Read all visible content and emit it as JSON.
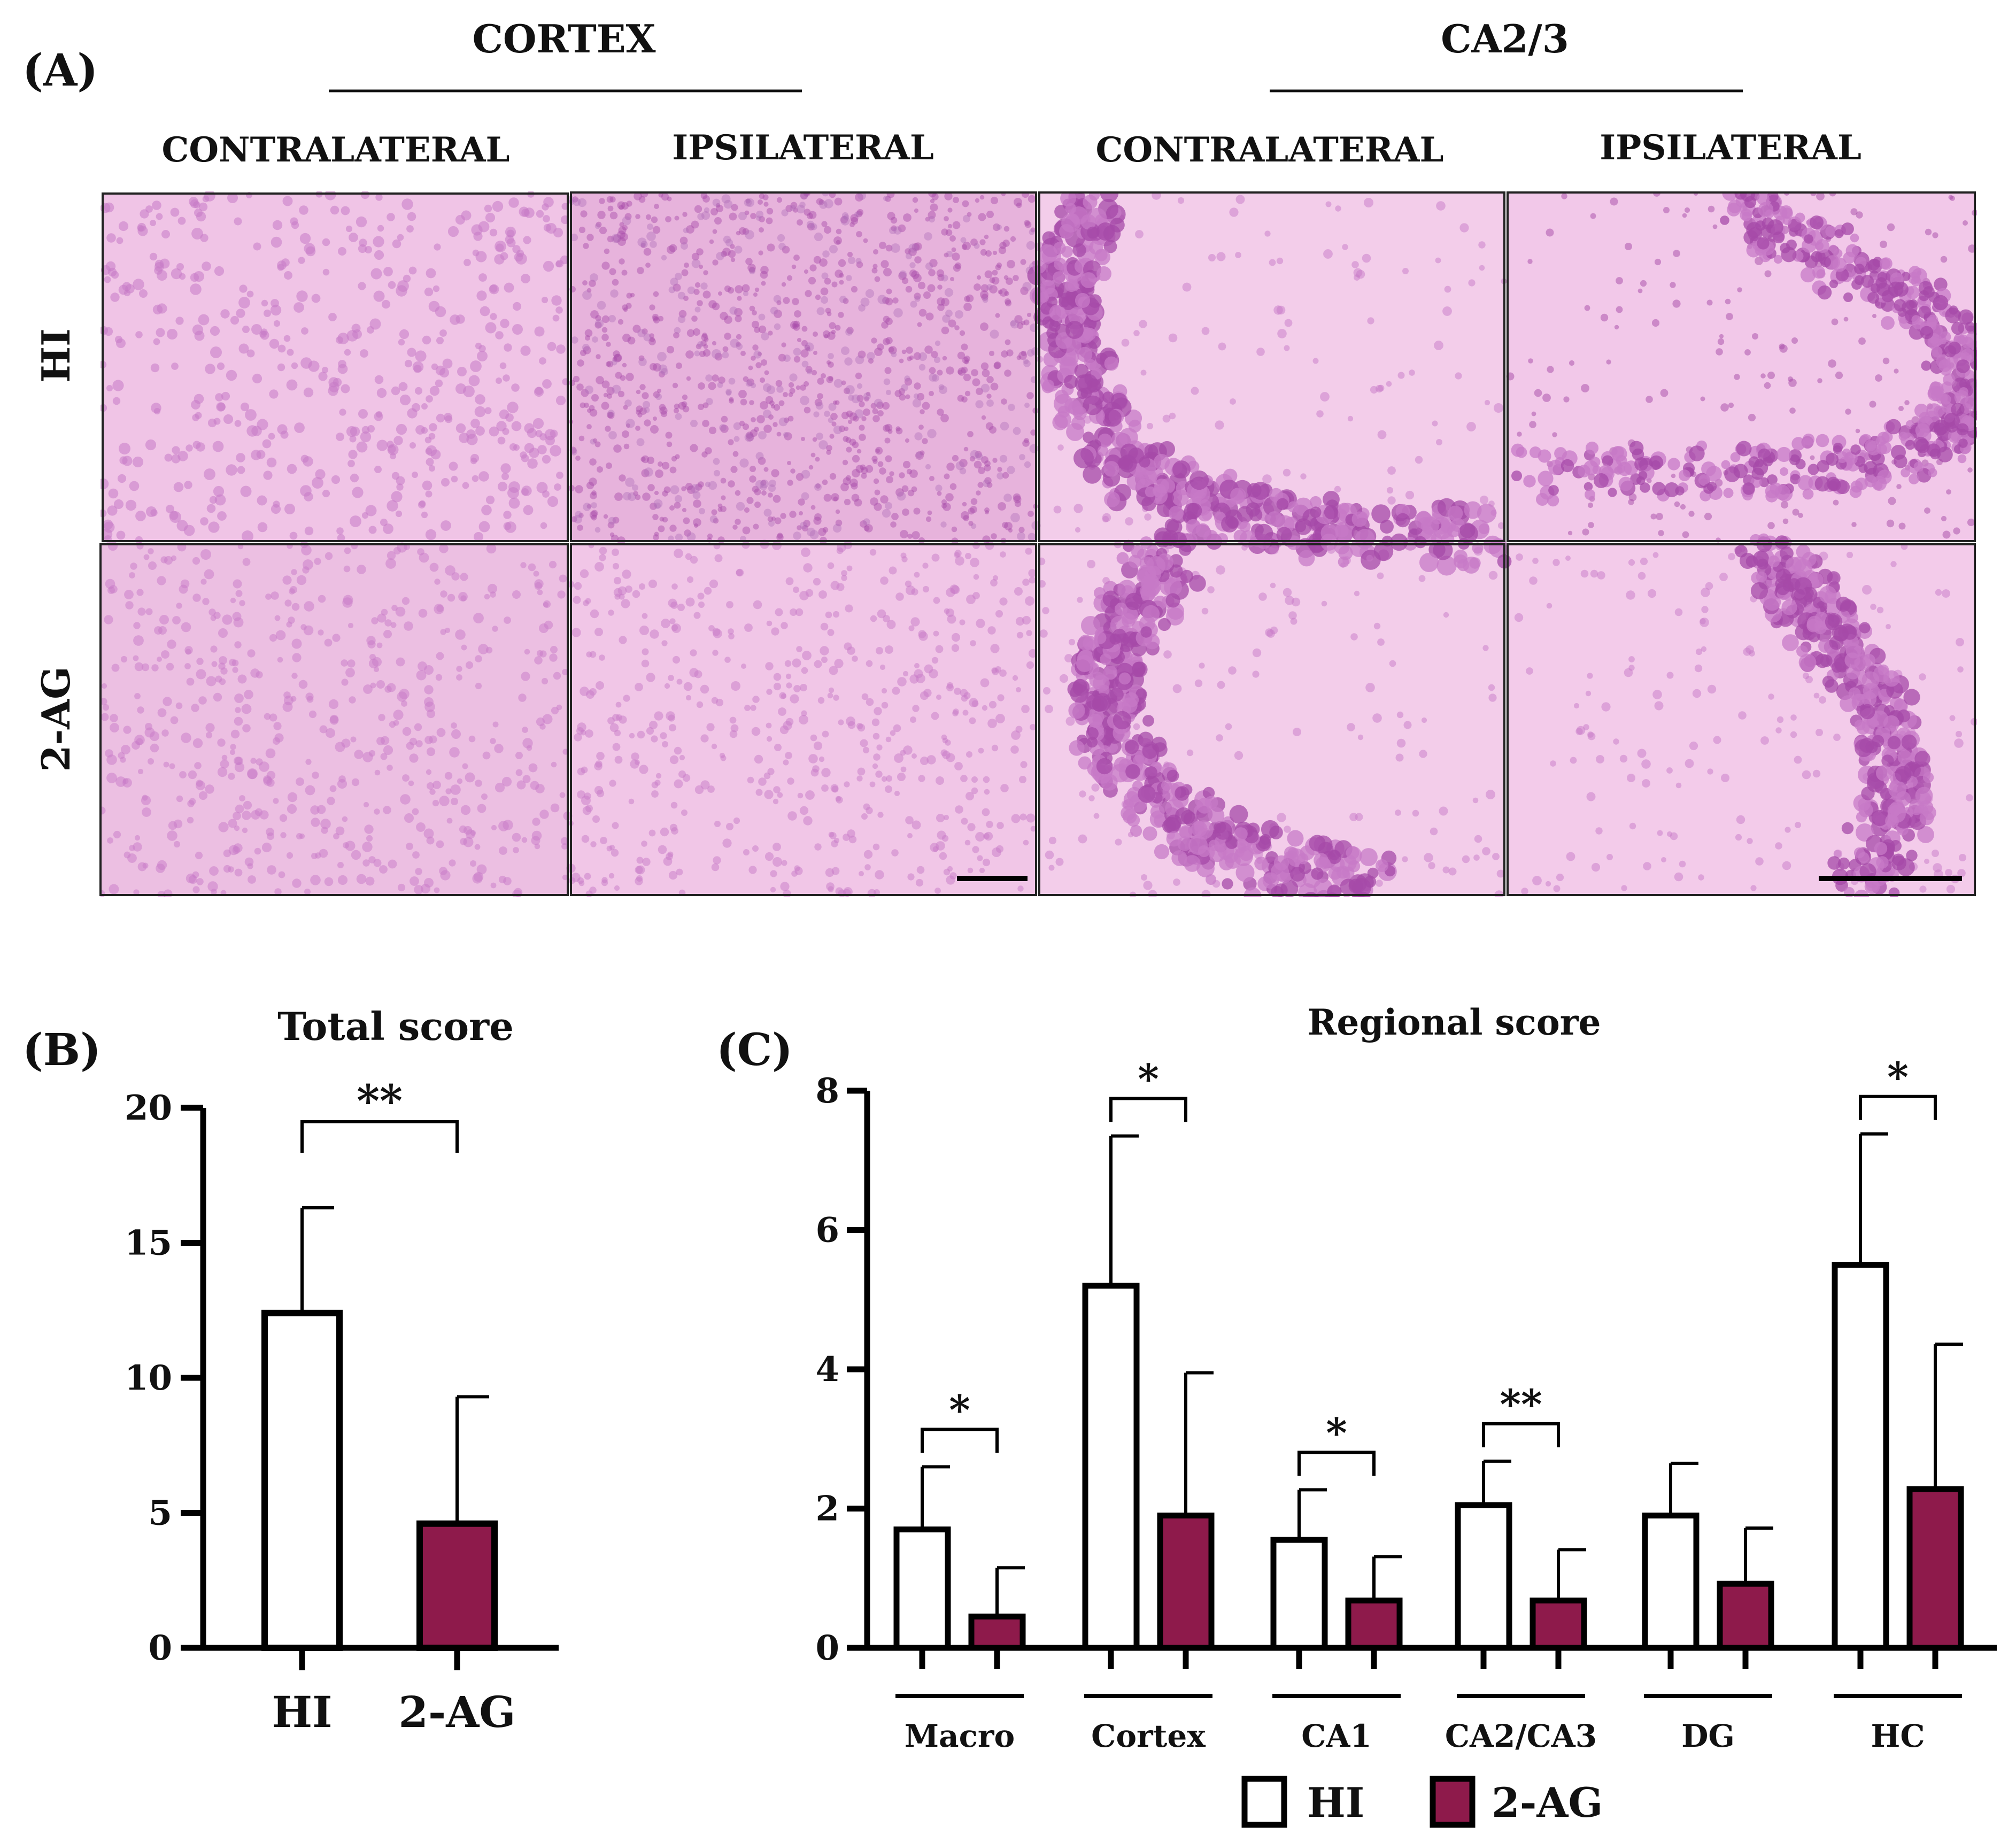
{
  "panel_a": {
    "label": "(A)",
    "groups": [
      "CORTEX",
      "CA2/3"
    ],
    "columns": [
      "CONTRALATERAL",
      "IPSILATERAL",
      "CONTRALATERAL",
      "IPSILATERAL"
    ],
    "rows": [
      "HI",
      "2-AG"
    ],
    "colors": {
      "tissue": "#f0c4e6",
      "cell": "#c77ac7",
      "dense_cell": "#a64aa8",
      "dark_tissue": "#e0a8d4"
    }
  },
  "panel_b": {
    "label": "(B)"
  },
  "panel_c": {
    "label": "(C)"
  },
  "legend": [
    {
      "name": "HI",
      "color": "#ffffff"
    },
    {
      "name": "2-AG",
      "color": "#8e1a4b"
    }
  ],
  "chart_data": [
    {
      "type": "bar",
      "title": "Total score",
      "categories": [
        "HI",
        "2-AG"
      ],
      "values": [
        12.4,
        4.6
      ],
      "errors": [
        3.9,
        4.7
      ],
      "yticks": [
        "0",
        "5",
        "10",
        "15",
        "20"
      ],
      "ylim": [
        0,
        20
      ],
      "significance": [
        {
          "from": 0,
          "to": 1,
          "label": "**"
        }
      ],
      "colors": [
        "#ffffff",
        "#8e1a4b"
      ]
    },
    {
      "type": "bar",
      "title": "Regional score",
      "categories": [
        "Macro",
        "Cortex",
        "CA1",
        "CA2/CA3",
        "DG",
        "HC"
      ],
      "series": [
        {
          "name": "HI",
          "values": [
            1.7,
            5.2,
            1.55,
            2.05,
            1.9,
            5.5
          ],
          "errors": [
            0.9,
            2.15,
            0.72,
            0.63,
            0.75,
            1.88
          ]
        },
        {
          "name": "2-AG",
          "values": [
            0.45,
            1.9,
            0.68,
            0.68,
            0.92,
            2.28
          ],
          "errors": [
            0.7,
            2.05,
            0.63,
            0.73,
            0.8,
            2.08
          ]
        }
      ],
      "yticks": [
        "0",
        "2",
        "4",
        "6",
        "8"
      ],
      "ylim": [
        0,
        8
      ],
      "significance": [
        {
          "category": 0,
          "label": "*"
        },
        {
          "category": 1,
          "label": "*"
        },
        {
          "category": 2,
          "label": "*"
        },
        {
          "category": 3,
          "label": "**"
        },
        {
          "category": 5,
          "label": "*"
        }
      ]
    }
  ]
}
